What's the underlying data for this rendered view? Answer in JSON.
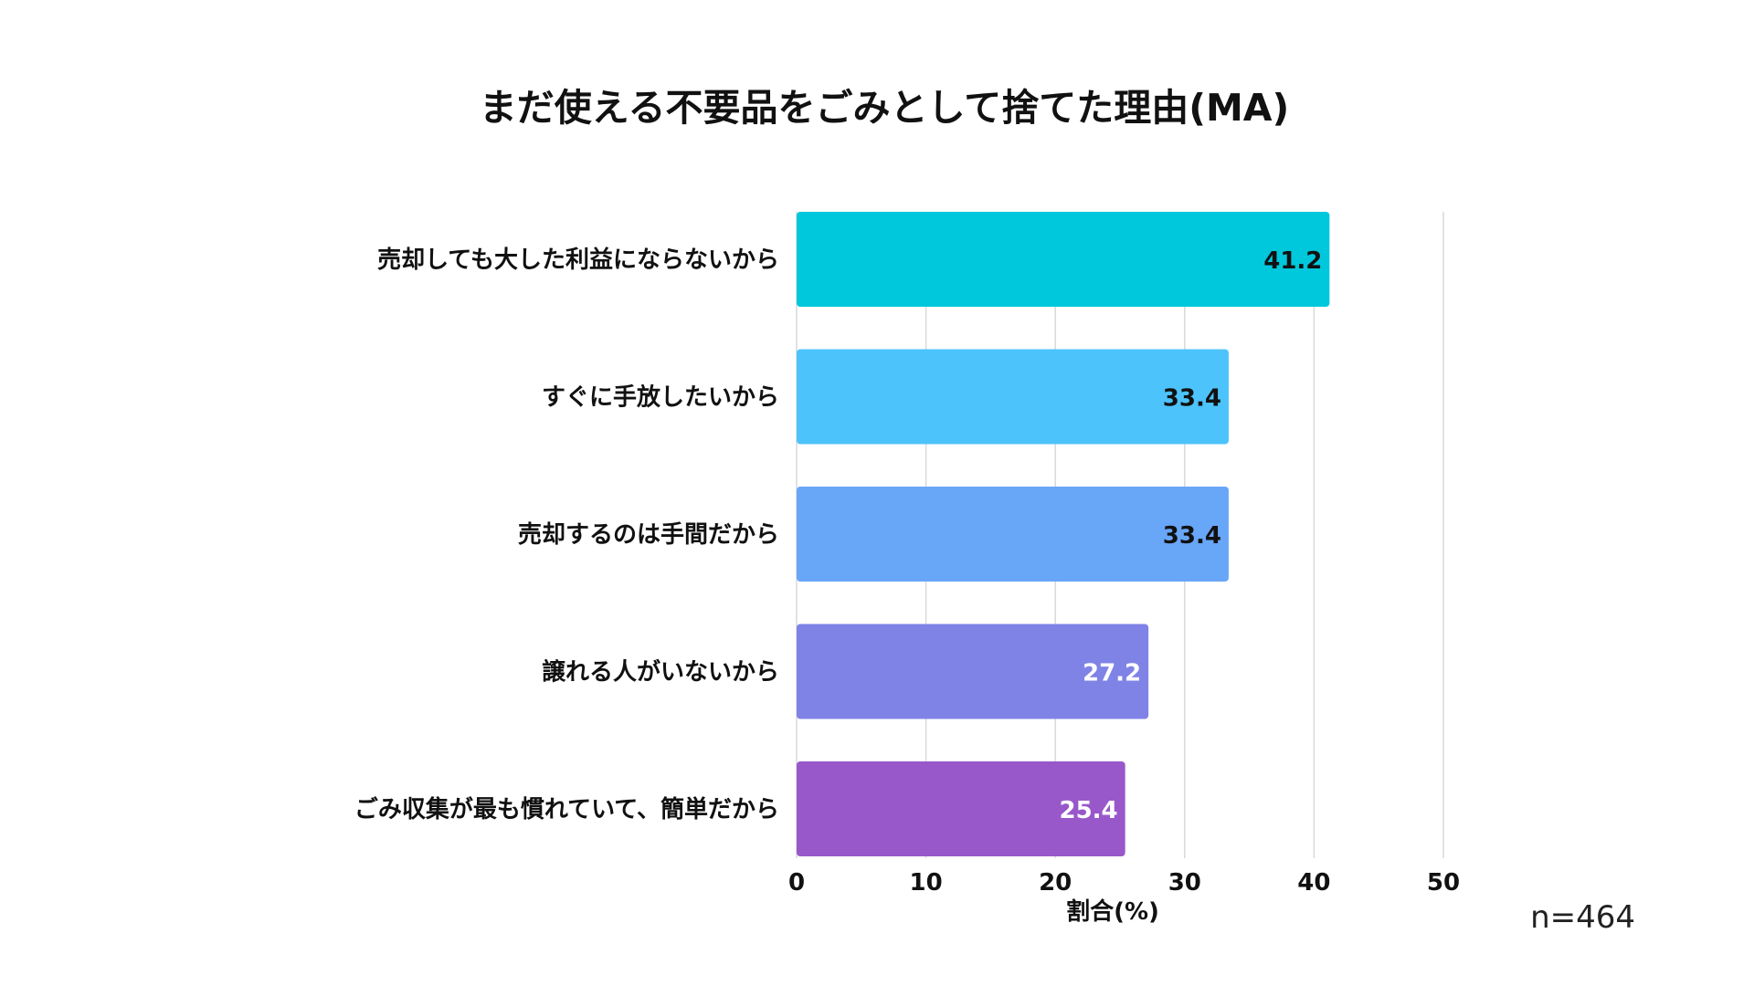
{
  "chart_data": {
    "type": "bar",
    "orientation": "horizontal",
    "title": "まだ使える不要品をごみとして捨てた理由(MA)",
    "categories": [
      "売却しても大した利益にならないから",
      "すぐに手放したいから",
      "売却するのは手間だから",
      "譲れる人がいないから",
      "ごみ収集が最も慣れていて、簡単だから"
    ],
    "values": [
      41.2,
      33.4,
      33.4,
      27.2,
      25.4
    ],
    "value_labels": [
      "41.2",
      "33.4",
      "33.4",
      "27.2",
      "25.4"
    ],
    "bar_colors": [
      "#00c8dc",
      "#4cc3fb",
      "#68a6f8",
      "#7f83e6",
      "#9858ca"
    ],
    "value_label_colors": [
      "#111111",
      "#111111",
      "#111111",
      "#ffffff",
      "#ffffff"
    ],
    "xlabel": "割合(%)",
    "ylabel": "",
    "xlim": [
      0,
      50
    ],
    "xticks": [
      "0",
      "10",
      "20",
      "30",
      "40",
      "50"
    ],
    "grid": true,
    "legend": "none",
    "note": "n=464"
  }
}
